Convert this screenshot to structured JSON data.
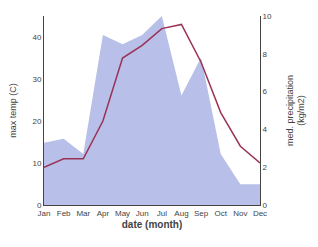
{
  "chart_data": {
    "type": "line",
    "categories": [
      "Jan",
      "Feb",
      "Mar",
      "Apr",
      "May",
      "Jun",
      "Jul",
      "Aug",
      "Sep",
      "Oct",
      "Nov",
      "Dec"
    ],
    "series": [
      {
        "type": "area",
        "color": "#b8bfe8",
        "axis": "y2",
        "values": [
          3.3,
          3.5,
          2.7,
          9.0,
          8.5,
          9.0,
          10.0,
          5.8,
          7.8,
          2.7,
          1.1,
          1.1
        ]
      },
      {
        "type": "line",
        "color": "#993355",
        "values": [
          9,
          11,
          11,
          20,
          35,
          38,
          42,
          43,
          34,
          22,
          14,
          10
        ]
      }
    ],
    "xlabel": "date (month)",
    "ylabel": "max temp (C)",
    "y2label": "med. precipitation\n(kg/m2)",
    "ylim": [
      0,
      45
    ],
    "yticks": [
      0,
      10,
      20,
      30,
      40
    ],
    "y2lim": [
      0,
      10
    ],
    "y2ticks": [
      0,
      2,
      4,
      6,
      8,
      10
    ],
    "grid": false
  }
}
